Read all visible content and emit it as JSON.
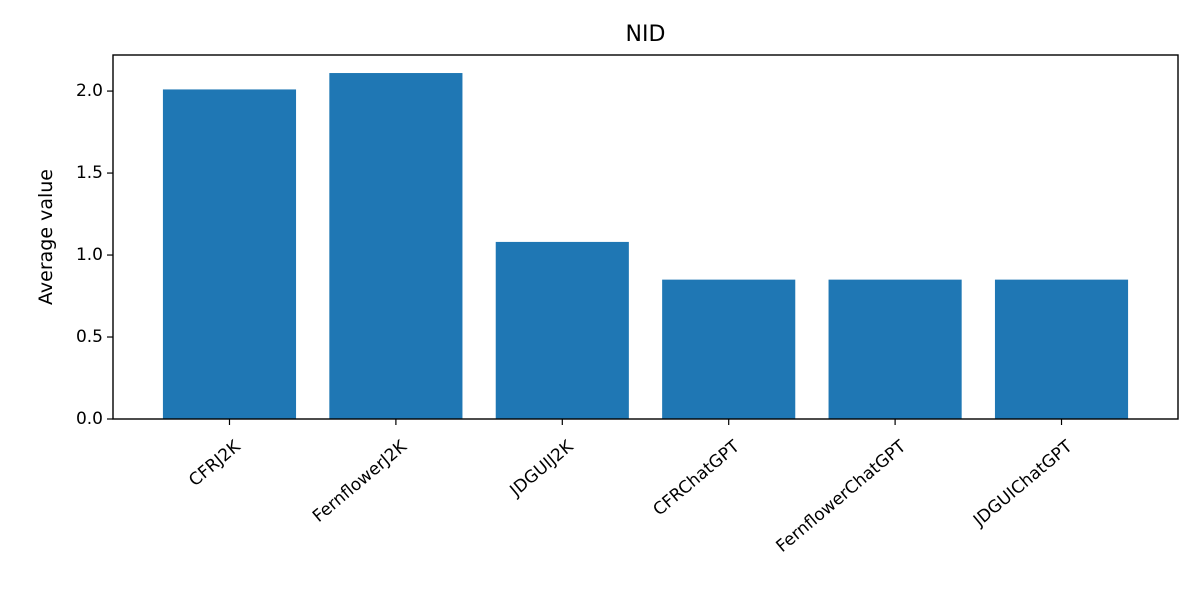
{
  "chart_data": {
    "type": "bar",
    "title": "NID",
    "xlabel": "",
    "ylabel": "Average value",
    "categories": [
      "CFRJ2K",
      "FernflowerJ2K",
      "JDGUIJ2K",
      "CFRChatGPT",
      "FernflowerChatGPT",
      "JDGUIChatGPT"
    ],
    "values": [
      2.01,
      2.11,
      1.08,
      0.85,
      0.85,
      0.85
    ],
    "ylim": [
      0,
      2.22
    ],
    "yticks": [
      "0.0",
      "0.5",
      "1.0",
      "1.5",
      "2.0"
    ],
    "grid": false,
    "bar_color": "#1f77b4"
  }
}
